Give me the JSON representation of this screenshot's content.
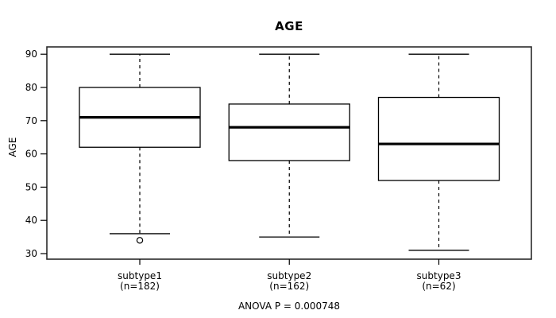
{
  "chart_data": {
    "type": "boxplot",
    "title": "AGE",
    "ylabel": "AGE",
    "annotation": "ANOVA P = 0.000748",
    "y_axis": {
      "ticks": [
        30,
        40,
        50,
        60,
        70,
        80,
        90
      ],
      "ylim": [
        28.3,
        92.0
      ],
      "grid": false
    },
    "groups": [
      {
        "label": "subtype1",
        "n_label": "(n=182)",
        "n": 182,
        "stats": {
          "lower_whisker": 36,
          "q1": 62,
          "median": 71,
          "q3": 80,
          "upper_whisker": 90
        },
        "outliers": [
          34
        ]
      },
      {
        "label": "subtype2",
        "n_label": "(n=162)",
        "n": 162,
        "stats": {
          "lower_whisker": 35,
          "q1": 58,
          "median": 68,
          "q3": 75,
          "upper_whisker": 90
        },
        "outliers": []
      },
      {
        "label": "subtype3",
        "n_label": "(n=62)",
        "n": 62,
        "stats": {
          "lower_whisker": 31,
          "q1": 52,
          "median": 63,
          "q3": 77,
          "upper_whisker": 90
        },
        "outliers": []
      }
    ],
    "colors": {
      "line": "#000000",
      "border": "#2b2b2b",
      "background": "#ffffff"
    }
  }
}
